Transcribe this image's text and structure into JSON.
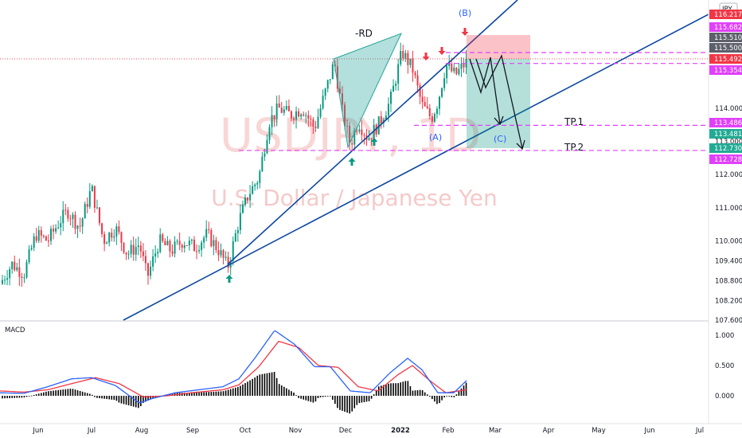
{
  "chart_data": [
    {
      "type": "candlestick",
      "symbol": "USDJPY",
      "interval": "1D",
      "watermark_symbol": "USDJPY, 1D",
      "watermark_name": "U.S. Dollar / Japanese Yen",
      "currency_badge": "JPY",
      "month_labels": [
        "Jun",
        "Jul",
        "Aug",
        "Sep",
        "Oct",
        "Nov",
        "Dec",
        "2022",
        "Feb",
        "Mar",
        "Apr",
        "May",
        "Jun",
        "Jul"
      ],
      "price_ticks": [
        "114.000",
        "113.000",
        "112.000",
        "111.000",
        "110.000",
        "109.400",
        "108.800",
        "108.200",
        "107.600"
      ],
      "price_tags": [
        {
          "label": "116.217",
          "value": 116.217,
          "color": "#f23645"
        },
        {
          "label": "115.682",
          "value": 115.682,
          "color": "#e040fb"
        },
        {
          "label": "115.510",
          "value": 115.51,
          "color": "#5d606b"
        },
        {
          "label": "115.500",
          "value": 115.5,
          "color": "#5d606b"
        },
        {
          "label": "115.492",
          "value": 115.492,
          "color": "#f23645"
        },
        {
          "label": "115.354",
          "value": 115.354,
          "color": "#e040fb"
        },
        {
          "label": "113.486",
          "value": 113.486,
          "color": "#e040fb"
        },
        {
          "label": "113.481",
          "value": 113.481,
          "color": "#22ab94"
        },
        {
          "label": "112.730",
          "value": 112.73,
          "color": "#22ab94"
        },
        {
          "label": "112.728",
          "value": 112.728,
          "color": "#e040fb"
        }
      ],
      "annotations": {
        "harmonic": "-RD",
        "wave_a": "(A)",
        "wave_b": "(B)",
        "wave_c": "(C)",
        "tp1": "TP.1",
        "tp2": "TP.2"
      },
      "levels": {
        "tp1": 113.486,
        "tp2": 112.728,
        "entry": 115.354,
        "stop": 115.682
      },
      "ohlc_path": [
        [
          0,
          108.7
        ],
        [
          15,
          109.3
        ],
        [
          30,
          109.0
        ],
        [
          45,
          110.2
        ],
        [
          60,
          110.0
        ],
        [
          75,
          110.6
        ],
        [
          85,
          110.9
        ],
        [
          100,
          110.4
        ],
        [
          115,
          111.6
        ],
        [
          130,
          110.0
        ],
        [
          145,
          110.4
        ],
        [
          160,
          109.6
        ],
        [
          175,
          109.9
        ],
        [
          185,
          108.9
        ],
        [
          200,
          110.0
        ],
        [
          215,
          109.7
        ],
        [
          230,
          110.0
        ],
        [
          245,
          109.8
        ],
        [
          260,
          110.2
        ],
        [
          275,
          109.7
        ],
        [
          286,
          109.2
        ],
        [
          300,
          110.6
        ],
        [
          312,
          111.4
        ],
        [
          325,
          111.9
        ],
        [
          338,
          113.6
        ],
        [
          350,
          114.0
        ],
        [
          365,
          113.8
        ],
        [
          380,
          114.0
        ],
        [
          395,
          113.4
        ],
        [
          410,
          114.6
        ],
        [
          420,
          115.4
        ],
        [
          430,
          113.9
        ],
        [
          440,
          112.9
        ],
        [
          450,
          113.6
        ],
        [
          462,
          113.1
        ],
        [
          475,
          113.5
        ],
        [
          490,
          114.2
        ],
        [
          505,
          115.7
        ],
        [
          518,
          115.2
        ],
        [
          530,
          114.1
        ],
        [
          542,
          113.7
        ],
        [
          550,
          114.2
        ],
        [
          560,
          115.3
        ],
        [
          572,
          115.0
        ],
        [
          586,
          115.4
        ]
      ],
      "macd": {
        "label": "MACD",
        "ticks": [
          "1.000",
          "0.500",
          "0.000"
        ],
        "macd_line": [
          [
            0,
            0.05
          ],
          [
            30,
            0.04
          ],
          [
            60,
            0.15
          ],
          [
            90,
            0.28
          ],
          [
            115,
            0.3
          ],
          [
            145,
            0.17
          ],
          [
            175,
            -0.12
          ],
          [
            190,
            -0.05
          ],
          [
            220,
            0.05
          ],
          [
            250,
            0.1
          ],
          [
            280,
            0.15
          ],
          [
            300,
            0.28
          ],
          [
            320,
            0.62
          ],
          [
            345,
            1.08
          ],
          [
            370,
            0.85
          ],
          [
            395,
            0.48
          ],
          [
            415,
            0.48
          ],
          [
            440,
            0.08
          ],
          [
            465,
            0.05
          ],
          [
            490,
            0.38
          ],
          [
            512,
            0.62
          ],
          [
            530,
            0.43
          ],
          [
            550,
            0.05
          ],
          [
            570,
            0.05
          ],
          [
            586,
            0.25
          ]
        ],
        "signal_line": [
          [
            0,
            0.08
          ],
          [
            30,
            0.06
          ],
          [
            60,
            0.1
          ],
          [
            90,
            0.2
          ],
          [
            120,
            0.3
          ],
          [
            150,
            0.2
          ],
          [
            180,
            -0.02
          ],
          [
            210,
            0.0
          ],
          [
            240,
            0.05
          ],
          [
            280,
            0.1
          ],
          [
            300,
            0.18
          ],
          [
            325,
            0.48
          ],
          [
            350,
            0.9
          ],
          [
            375,
            0.8
          ],
          [
            400,
            0.5
          ],
          [
            425,
            0.47
          ],
          [
            450,
            0.15
          ],
          [
            475,
            0.08
          ],
          [
            500,
            0.35
          ],
          [
            518,
            0.5
          ],
          [
            540,
            0.25
          ],
          [
            560,
            0.05
          ],
          [
            586,
            0.1
          ]
        ],
        "histogram_color": "#000000"
      },
      "colors": {
        "up": "#089981",
        "down": "#f23645",
        "trendline": "#0d47a1",
        "dashed": "#e040fb",
        "macd_line": "#2962ff",
        "signal_line": "#f23645"
      }
    }
  ]
}
